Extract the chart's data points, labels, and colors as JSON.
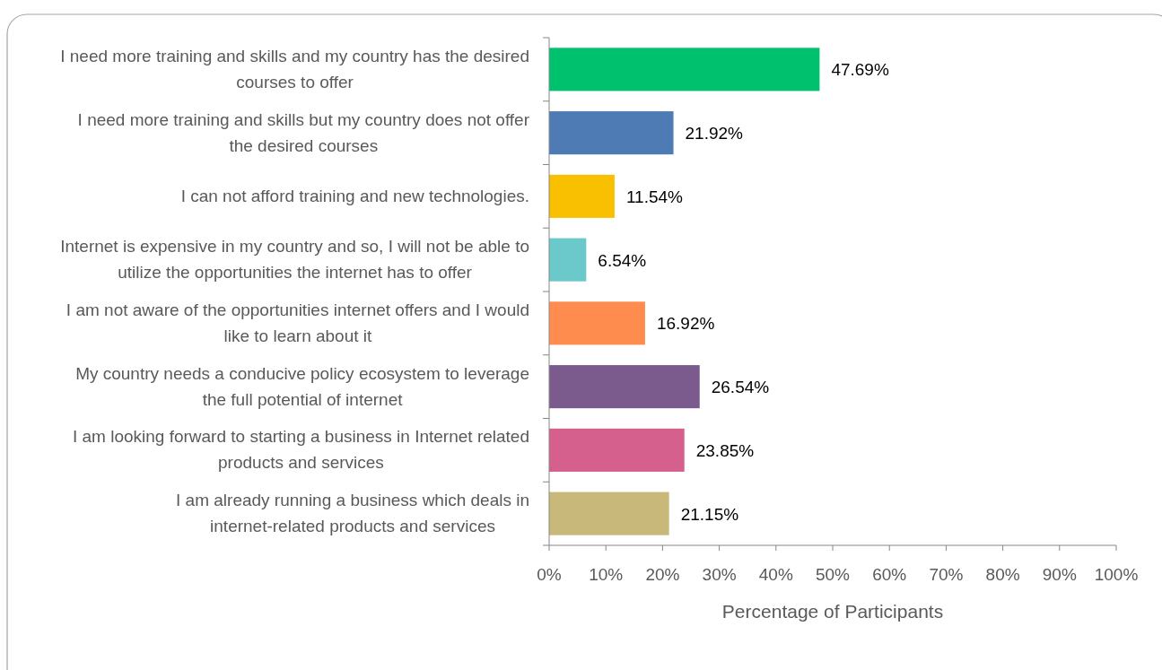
{
  "chart_data": {
    "type": "bar",
    "orientation": "horizontal",
    "xlabel": "Percentage of Participants",
    "categories": [
      "I need more training and skills and my country has the desired courses to offer",
      "I need more training and skills but my country does not offer the desired courses",
      "I can not afford training and new technologies.",
      "Internet is expensive in my country and so, I will not be able to utilize the opportunities the internet has to offer",
      "I am not aware of the opportunities internet offers and I would like to learn about it",
      "My country needs a conducive policy ecosystem to leverage the full potential of internet",
      "I am looking forward to starting a business in Internet related products and services",
      "I am already running a business which deals in internet-related products and services"
    ],
    "values": [
      47.69,
      21.92,
      11.54,
      6.54,
      16.92,
      26.54,
      23.85,
      21.15
    ],
    "value_labels": [
      "47.69%",
      "21.92%",
      "11.54%",
      "6.54%",
      "16.92%",
      "26.54%",
      "23.85%",
      "21.15%"
    ],
    "colors": [
      "#00c16e",
      "#4f7bb5",
      "#f8c000",
      "#6cc9cb",
      "#fe8c4f",
      "#7b5b8e",
      "#d55f8d",
      "#c8b87a"
    ],
    "xlim": [
      0,
      100
    ],
    "xticks": [
      {
        "value": 0,
        "label": "0%"
      },
      {
        "value": 10,
        "label": "10%"
      },
      {
        "value": 20,
        "label": "20%"
      },
      {
        "value": 30,
        "label": "30%"
      },
      {
        "value": 40,
        "label": "40%"
      },
      {
        "value": 50,
        "label": "50%"
      },
      {
        "value": 60,
        "label": "60%"
      },
      {
        "value": 70,
        "label": "70%"
      },
      {
        "value": 80,
        "label": "80%"
      },
      {
        "value": 90,
        "label": "90%"
      },
      {
        "value": 100,
        "label": "100%"
      }
    ],
    "grid": false
  }
}
